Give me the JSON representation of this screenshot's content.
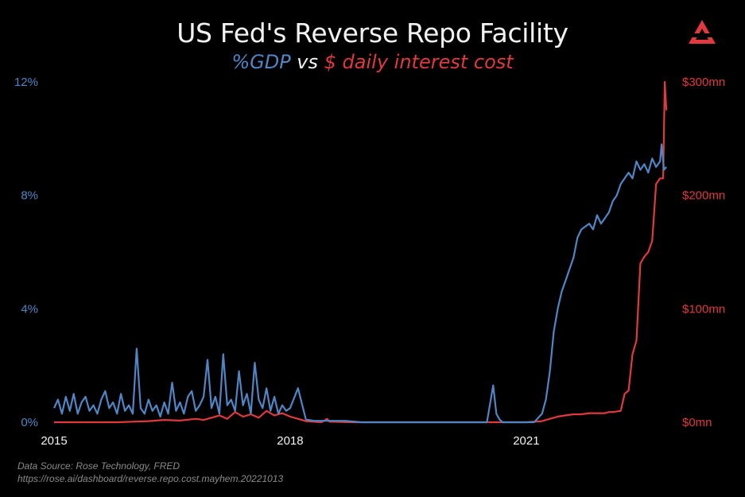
{
  "title": "US Fed's Reverse Repo Facility",
  "subtitle": {
    "part1": "%GDP",
    "part2": " vs ",
    "part3": "$ daily interest cost"
  },
  "source": {
    "line1": "Data Source: Rose Technology, FRED",
    "line2": "https://rose.ai/dashboard/reverse.repo.cost.mayhem.20221013"
  },
  "colors": {
    "gdp": "#4f86c6",
    "cost": "#e0393e",
    "background": "#000000",
    "text": "#f2f2f2",
    "logo": "#e0393e"
  },
  "logo_icon": "rose-technology-logo",
  "chart_data": {
    "type": "line",
    "grid": false,
    "xlim": [
      2015.0,
      2022.85
    ],
    "x_ticks": [
      {
        "value": 2015,
        "label": "2015"
      },
      {
        "value": 2018,
        "label": "2018"
      },
      {
        "value": 2021,
        "label": "2021"
      }
    ],
    "y_left": {
      "ylim": [
        0,
        12
      ],
      "ticks": [
        {
          "value": 0,
          "label": "0%"
        },
        {
          "value": 4,
          "label": "4%"
        },
        {
          "value": 8,
          "label": "8%"
        },
        {
          "value": 12,
          "label": "12%"
        }
      ]
    },
    "y_right": {
      "ylim": [
        0,
        300
      ],
      "ticks": [
        {
          "value": 0,
          "label": "$0mn"
        },
        {
          "value": 100,
          "label": "$100mn"
        },
        {
          "value": 200,
          "label": "$200mn"
        },
        {
          "value": 300,
          "label": "$300mn"
        }
      ]
    },
    "series": [
      {
        "id": "gdp",
        "axis": "left",
        "x": [
          2015.0,
          2015.05,
          2015.1,
          2015.15,
          2015.2,
          2015.25,
          2015.3,
          2015.35,
          2015.4,
          2015.45,
          2015.5,
          2015.55,
          2015.6,
          2015.65,
          2015.7,
          2015.75,
          2015.8,
          2015.85,
          2015.9,
          2015.95,
          2016.0,
          2016.05,
          2016.1,
          2016.15,
          2016.2,
          2016.25,
          2016.3,
          2016.35,
          2016.4,
          2016.45,
          2016.5,
          2016.55,
          2016.6,
          2016.65,
          2016.7,
          2016.75,
          2016.8,
          2016.85,
          2016.9,
          2016.95,
          2017.0,
          2017.05,
          2017.1,
          2017.15,
          2017.2,
          2017.25,
          2017.3,
          2017.35,
          2017.4,
          2017.45,
          2017.5,
          2017.55,
          2017.6,
          2017.65,
          2017.7,
          2017.75,
          2017.8,
          2017.85,
          2017.9,
          2017.95,
          2018.0,
          2018.1,
          2018.2,
          2018.3,
          2018.5,
          2018.7,
          2018.9,
          2019.1,
          2019.3,
          2019.5,
          2019.7,
          2019.9,
          2020.1,
          2020.3,
          2020.5,
          2020.58,
          2020.62,
          2020.66,
          2020.7,
          2020.8,
          2021.0,
          2021.1,
          2021.2,
          2021.25,
          2021.3,
          2021.35,
          2021.4,
          2021.45,
          2021.5,
          2021.55,
          2021.6,
          2021.65,
          2021.7,
          2021.75,
          2021.8,
          2021.85,
          2021.9,
          2021.95,
          2022.0,
          2022.05,
          2022.1,
          2022.15,
          2022.2,
          2022.25,
          2022.3,
          2022.35,
          2022.4,
          2022.45,
          2022.5,
          2022.55,
          2022.6,
          2022.65,
          2022.7,
          2022.72,
          2022.75,
          2022.78
        ],
        "values": [
          0.5,
          0.8,
          0.3,
          0.9,
          0.4,
          1.0,
          0.3,
          0.7,
          0.9,
          0.4,
          0.6,
          0.3,
          0.8,
          1.1,
          0.5,
          0.7,
          0.3,
          1.0,
          0.4,
          0.6,
          0.3,
          2.6,
          0.5,
          0.3,
          0.8,
          0.4,
          0.6,
          0.2,
          0.7,
          0.3,
          1.4,
          0.4,
          0.7,
          0.3,
          0.9,
          1.1,
          0.4,
          0.6,
          0.9,
          2.2,
          0.5,
          0.9,
          0.3,
          2.4,
          0.6,
          0.8,
          0.4,
          1.8,
          0.6,
          1.0,
          0.3,
          2.1,
          0.8,
          0.5,
          1.2,
          0.4,
          0.9,
          0.3,
          0.6,
          0.4,
          0.5,
          1.2,
          0.1,
          0.05,
          0.05,
          0.05,
          0.0,
          0.0,
          0.0,
          0.0,
          0.0,
          0.0,
          0.0,
          0.0,
          0.0,
          1.3,
          0.3,
          0.1,
          0.0,
          0.0,
          0.0,
          0.0,
          0.3,
          0.8,
          1.8,
          3.2,
          4.0,
          4.6,
          5.0,
          5.4,
          5.8,
          6.5,
          6.8,
          6.9,
          7.0,
          6.8,
          7.3,
          7.0,
          7.2,
          7.4,
          7.8,
          8.0,
          8.4,
          8.6,
          8.8,
          8.6,
          9.2,
          8.9,
          9.1,
          8.8,
          9.3,
          9.0,
          9.2,
          9.8,
          8.9,
          9.0
        ]
      },
      {
        "id": "cost",
        "axis": "right",
        "x": [
          2015.0,
          2015.2,
          2015.4,
          2015.6,
          2015.8,
          2016.0,
          2016.2,
          2016.4,
          2016.6,
          2016.8,
          2016.9,
          2017.0,
          2017.1,
          2017.2,
          2017.3,
          2017.4,
          2017.5,
          2017.6,
          2017.7,
          2017.8,
          2017.9,
          2018.0,
          2018.1,
          2018.2,
          2018.4,
          2018.47,
          2018.5,
          2018.8,
          2019.2,
          2019.6,
          2020.0,
          2020.4,
          2020.8,
          2021.0,
          2021.2,
          2021.3,
          2021.4,
          2021.5,
          2021.6,
          2021.7,
          2021.8,
          2021.9,
          2022.0,
          2022.05,
          2022.1,
          2022.2,
          2022.25,
          2022.3,
          2022.35,
          2022.4,
          2022.45,
          2022.5,
          2022.55,
          2022.6,
          2022.65,
          2022.7,
          2022.74,
          2022.76,
          2022.78
        ],
        "values": [
          0,
          0,
          0,
          0,
          0,
          0.5,
          1,
          2,
          1.5,
          3,
          2,
          4,
          6,
          3,
          9,
          5,
          7,
          4,
          10,
          6,
          8,
          5,
          3,
          1,
          0,
          3,
          0.5,
          0,
          0,
          0,
          0,
          0,
          0,
          0,
          1,
          3,
          5,
          6,
          7,
          7,
          8,
          8,
          8,
          9,
          9,
          10,
          25,
          28,
          60,
          72,
          140,
          146,
          150,
          160,
          210,
          215,
          215,
          300,
          275
        ]
      }
    ]
  }
}
